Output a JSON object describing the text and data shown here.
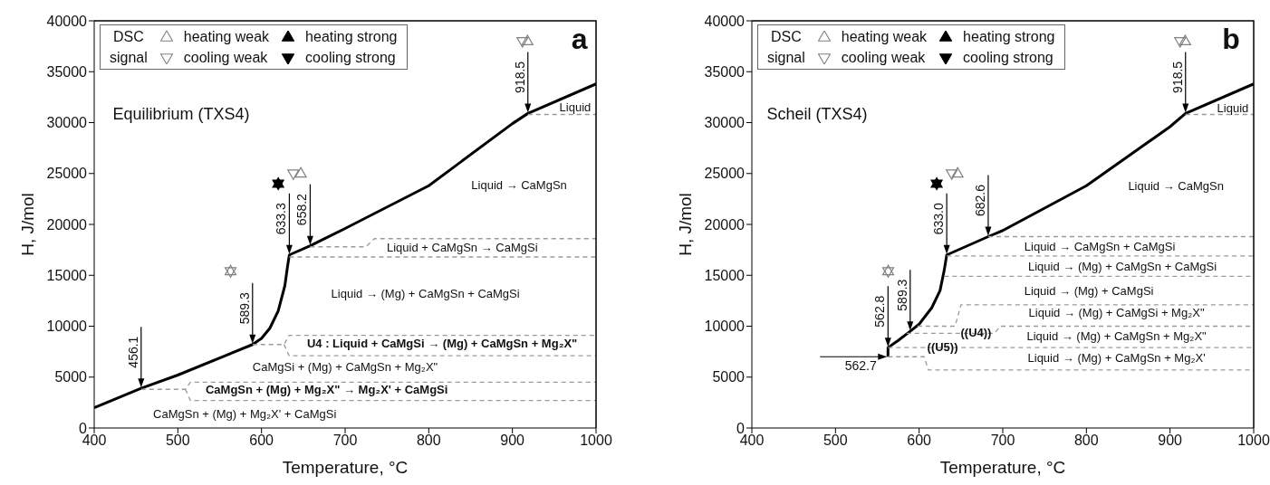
{
  "chart_data": [
    {
      "type": "line",
      "xlabel": "Temperature, °C",
      "ylabel": "H, J/mol",
      "xlim": [
        400,
        1000
      ],
      "ylim": [
        0,
        40000
      ],
      "xticks": [
        400,
        500,
        600,
        700,
        800,
        900,
        1000
      ],
      "yticks": [
        0,
        5000,
        10000,
        15000,
        20000,
        25000,
        30000,
        35000,
        40000
      ],
      "legend": "top left",
      "legend_title": "DSC signal",
      "series": [
        {
          "color": "#000000",
          "line_style": "solid",
          "x": [
            400,
            456.1,
            500,
            589.3,
            600,
            610,
            620,
            628,
            631,
            633.3,
            658.2,
            700,
            800,
            900,
            918.5,
            1000
          ],
          "values": [
            2000,
            3900,
            5200,
            8200,
            8800,
            9800,
            11500,
            14000,
            15800,
            17000,
            17900,
            19600,
            23800,
            29900,
            30900,
            33800
          ]
        },
        {
          "type": "scatter",
          "name": "heating weak",
          "color": "#808080",
          "marker": "triangle",
          "x": [
            563,
            647,
            918
          ],
          "values": [
            15400,
            25000,
            38000
          ]
        },
        {
          "type": "scatter",
          "name": "cooling weak",
          "color": "#808080",
          "marker": "triangle-down",
          "x": [
            563,
            638,
            912
          ],
          "values": [
            15400,
            25000,
            38000
          ]
        },
        {
          "type": "scatter",
          "name": "heating strong",
          "color": "#000000",
          "marker": "triangle",
          "x": [
            620
          ],
          "values": [
            24000
          ]
        },
        {
          "type": "scatter",
          "name": "cooling strong",
          "color": "#000000",
          "marker": "triangle-down",
          "x": [
            620
          ],
          "values": [
            24000
          ]
        },
        {
          "color": "#9a9a9a",
          "line_style": "dashed",
          "x": [
            918.5,
            1000
          ],
          "values": [
            30800,
            30800
          ]
        },
        {
          "color": "#9a9a9a",
          "line_style": "dashed",
          "x": [
            658.2,
            725,
            735,
            1000
          ],
          "values": [
            17800,
            17800,
            18600,
            18600
          ]
        },
        {
          "color": "#9a9a9a",
          "line_style": "dashed",
          "x": [
            633.3,
            1000
          ],
          "values": [
            16800,
            16800
          ]
        },
        {
          "color": "#9a9a9a",
          "line_style": "dashed",
          "x": [
            589.3,
            627,
            633,
            1000
          ],
          "values": [
            8200,
            8200,
            9100,
            9100
          ]
        },
        {
          "color": "#9a9a9a",
          "line_style": "dashed",
          "x": [
            627,
            633,
            1000
          ],
          "values": [
            8200,
            7100,
            7100
          ]
        },
        {
          "color": "#9a9a9a",
          "line_style": "dashed",
          "x": [
            456.1,
            509,
            515,
            1000
          ],
          "values": [
            3800,
            3800,
            4500,
            4500
          ]
        },
        {
          "color": "#9a9a9a",
          "line_style": "dashed",
          "x": [
            509,
            515,
            1000
          ],
          "values": [
            3800,
            2700,
            2700
          ]
        }
      ],
      "annotations": [
        {
          "text": "456.1",
          "x": 456.1,
          "y": 3900
        },
        {
          "text": "589.3",
          "x": 589.3,
          "y": 8200
        },
        {
          "text": "633.3",
          "x": 633.3,
          "y": 17000
        },
        {
          "text": "658.2",
          "x": 658.2,
          "y": 17900
        },
        {
          "text": "918.5",
          "x": 918.5,
          "y": 30900
        },
        "Equilibrium (TXS4)",
        "a",
        "Liquid",
        "Liquid → CaMgSn",
        "Liquid + CaMgSn → CaMgSi",
        "Liquid → (Mg) + CaMgSn + CaMgSi",
        "U4 : Liquid + CaMgSi → (Mg) + CaMgSn + Mg₂X\"",
        "CaMgSi + (Mg) + CaMgSn + Mg₂X\"",
        "CaMgSn + (Mg) + Mg₂X\" → Mg₂X' + CaMgSi",
        "CaMgSn + (Mg) + Mg₂X' + CaMgSi"
      ]
    },
    {
      "type": "line",
      "xlabel": "Temperature, °C",
      "ylabel": "H, J/mol",
      "xlim": [
        400,
        1000
      ],
      "ylim": [
        0,
        40000
      ],
      "xticks": [
        400,
        500,
        600,
        700,
        800,
        900,
        1000
      ],
      "yticks": [
        0,
        5000,
        10000,
        15000,
        20000,
        25000,
        30000,
        35000,
        40000
      ],
      "legend": "top left",
      "legend_title": "DSC signal",
      "series": [
        {
          "color": "#000000",
          "line_style": "solid",
          "x": [
            562.7,
            562.8,
            575,
            589.3,
            600,
            615,
            625,
            630,
            633,
            682.6,
            700,
            800,
            900,
            918.5,
            1000
          ],
          "values": [
            7000,
            7900,
            8600,
            9500,
            10200,
            11800,
            13500,
            15500,
            17000,
            18800,
            19400,
            23800,
            29600,
            30900,
            33800
          ]
        },
        {
          "type": "scatter",
          "name": "heating weak",
          "color": "#808080",
          "marker": "triangle",
          "x": [
            563,
            646,
            918
          ],
          "values": [
            15400,
            25000,
            38000
          ]
        },
        {
          "type": "scatter",
          "name": "cooling weak",
          "color": "#808080",
          "marker": "triangle-down",
          "x": [
            563,
            639,
            912
          ],
          "values": [
            15400,
            25000,
            38000
          ]
        },
        {
          "type": "scatter",
          "name": "heating strong",
          "color": "#000000",
          "marker": "triangle",
          "x": [
            621
          ],
          "values": [
            24000
          ]
        },
        {
          "type": "scatter",
          "name": "cooling strong",
          "color": "#000000",
          "marker": "triangle-down",
          "x": [
            621
          ],
          "values": [
            24000
          ]
        },
        {
          "color": "#9a9a9a",
          "line_style": "dashed",
          "x": [
            918.5,
            1000
          ],
          "values": [
            30800,
            30800
          ]
        },
        {
          "color": "#9a9a9a",
          "line_style": "dashed",
          "x": [
            682.6,
            1000
          ],
          "values": [
            18800,
            18800
          ]
        },
        {
          "color": "#9a9a9a",
          "line_style": "dashed",
          "x": [
            633,
            1000
          ],
          "values": [
            16900,
            16900
          ]
        },
        {
          "color": "#9a9a9a",
          "line_style": "dashed",
          "x": [
            630,
            1000
          ],
          "values": [
            14900,
            14900
          ]
        },
        {
          "color": "#9a9a9a",
          "line_style": "dashed",
          "x": [
            598,
            643,
            650,
            1000
          ],
          "values": [
            10000,
            10000,
            12100,
            12100
          ]
        },
        {
          "color": "#9a9a9a",
          "line_style": "dashed",
          "x": [
            585,
            690,
            697,
            1000
          ],
          "values": [
            9300,
            9300,
            10000,
            10000
          ]
        },
        {
          "color": "#9a9a9a",
          "line_style": "dashed",
          "x": [
            562.8,
            1000
          ],
          "values": [
            7900,
            7900
          ]
        },
        {
          "color": "#9a9a9a",
          "line_style": "dashed",
          "x": [
            562.7,
            606,
            611,
            1000
          ],
          "values": [
            7000,
            7000,
            5700,
            5700
          ]
        }
      ],
      "annotations": [
        {
          "text": "562.8",
          "x": 562.8,
          "y": 7900
        },
        {
          "text": "589.3",
          "x": 589.3,
          "y": 9500
        },
        {
          "text": "633.0",
          "x": 633,
          "y": 17000
        },
        {
          "text": "682.6",
          "x": 682.6,
          "y": 18800
        },
        {
          "text": "918.5",
          "x": 918.5,
          "y": 30900
        },
        {
          "text": "562.7",
          "x": 562.7,
          "y": 7000
        },
        "Scheil (TXS4)",
        "b",
        "Liquid",
        "Liquid → CaMgSn",
        "Liquid → CaMgSn + CaMgSi",
        "Liquid → (Mg) + CaMgSn + CaMgSi",
        "Liquid → (Mg) + CaMgSi",
        "Liquid → (Mg) + CaMgSi + Mg₂X\"",
        "Liquid → (Mg) + CaMgSn + Mg₂X\"",
        "Liquid → (Mg) + CaMgSn + Mg₂X'",
        "((U4))",
        "((U5))"
      ]
    }
  ]
}
